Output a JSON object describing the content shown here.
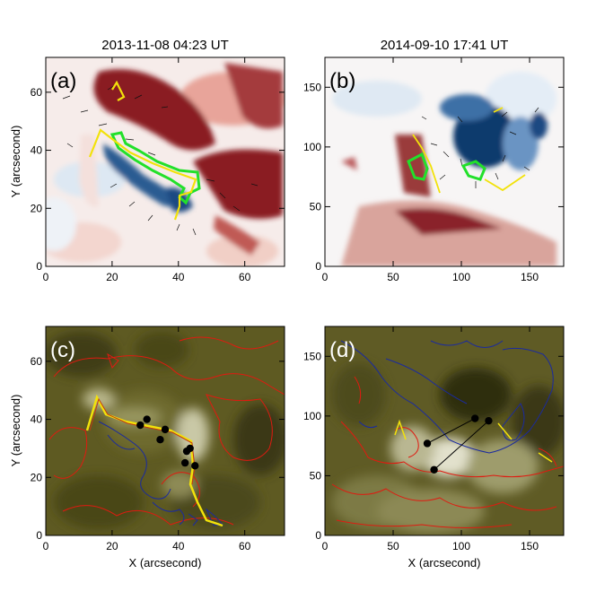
{
  "panels": [
    {
      "id": "a",
      "label": "(a)",
      "title": "2013-11-08 04:23 UT",
      "kind": "magnetogram",
      "xlim": [
        0,
        72
      ],
      "ylim": [
        0,
        72
      ],
      "x_ticks": [
        "0",
        "20",
        "40",
        "60"
      ],
      "x_tick_values": [
        0,
        20,
        40,
        60
      ],
      "y_ticks": [
        "0",
        "20",
        "40",
        "60"
      ],
      "y_tick_values": [
        0,
        20,
        40,
        60
      ],
      "xlabel": "",
      "ylabel": "Y (arcsecond)"
    },
    {
      "id": "b",
      "label": "(b)",
      "title": "2014-09-10 17:41 UT",
      "kind": "magnetogram",
      "xlim": [
        0,
        175
      ],
      "ylim": [
        0,
        175
      ],
      "x_ticks": [
        "0",
        "50",
        "100",
        "150"
      ],
      "x_tick_values": [
        0,
        50,
        100,
        150
      ],
      "y_ticks": [
        "0",
        "50",
        "100",
        "150"
      ],
      "y_tick_values": [
        0,
        50,
        100,
        150
      ],
      "xlabel": "",
      "ylabel": ""
    },
    {
      "id": "c",
      "label": "(c)",
      "title": "",
      "kind": "euv",
      "xlim": [
        0,
        72
      ],
      "ylim": [
        0,
        72
      ],
      "x_ticks": [
        "0",
        "20",
        "40",
        "60"
      ],
      "x_tick_values": [
        0,
        20,
        40,
        60
      ],
      "y_ticks": [
        "0",
        "20",
        "40",
        "60"
      ],
      "y_tick_values": [
        0,
        20,
        40,
        60
      ],
      "xlabel": "X (arcsecond)",
      "ylabel": "Y (arcsecond)"
    },
    {
      "id": "d",
      "label": "(d)",
      "title": "",
      "kind": "euv",
      "xlim": [
        0,
        175
      ],
      "ylim": [
        0,
        175
      ],
      "x_ticks": [
        "0",
        "50",
        "100",
        "150"
      ],
      "x_tick_values": [
        0,
        50,
        100,
        150
      ],
      "y_ticks": [
        "0",
        "50",
        "100",
        "150"
      ],
      "y_tick_values": [
        0,
        50,
        100,
        150
      ],
      "xlabel": "X (arcsecond)",
      "ylabel": ""
    }
  ],
  "colors": {
    "positive_polarity": "#7a0d1a",
    "negative_polarity": "#0d3a6b",
    "ribbon_contour": "#22e02a",
    "pil_line": "#f2e20a",
    "positive_contour": "#e01a10",
    "negative_contour": "#1a2aa0",
    "euv_background": "#5e5a22",
    "marker": "#000000"
  },
  "markers_c": [
    [
      28.5,
      38
    ],
    [
      30.5,
      40
    ],
    [
      36,
      36.5
    ],
    [
      34.5,
      33
    ],
    [
      43.5,
      30
    ],
    [
      42.5,
      29
    ],
    [
      42,
      25
    ],
    [
      45,
      24
    ]
  ],
  "markers_d": [
    [
      75,
      77
    ],
    [
      110,
      98
    ],
    [
      120,
      96
    ],
    [
      80,
      55
    ]
  ],
  "links_d": [
    [
      0,
      1
    ],
    [
      2,
      3
    ]
  ]
}
